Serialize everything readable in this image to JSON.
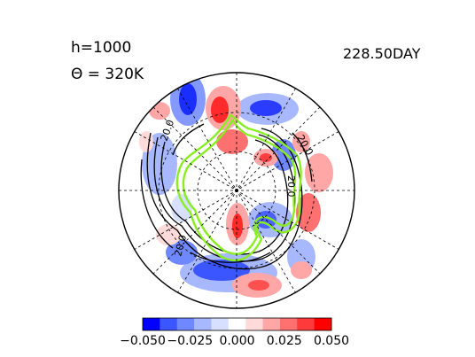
{
  "header": {
    "h_label": "h=1000",
    "theta_label": "Θ = 320K",
    "time_label": "228.50DAY"
  },
  "chart_data": {
    "type": "heatmap",
    "projection": "polar-stereographic",
    "title": "",
    "contour_labels": [
      "20.0",
      "20.0",
      "20.0",
      "20.0"
    ],
    "colorbar": {
      "ticks": [
        "-0.050",
        "-0.025",
        "0.000",
        "0.025",
        "0.050"
      ],
      "range": [
        -0.05,
        0.05
      ],
      "colormap": [
        "#0000ff",
        "#3b55ff",
        "#6f87ff",
        "#a8b8ff",
        "#d8e0ff",
        "#ffffff",
        "#ffdada",
        "#ffa6a6",
        "#ff7070",
        "#ff3a3a",
        "#ff0000"
      ]
    },
    "colors": {
      "highlight_contour": "#88ee22",
      "contour": "#000000"
    }
  }
}
